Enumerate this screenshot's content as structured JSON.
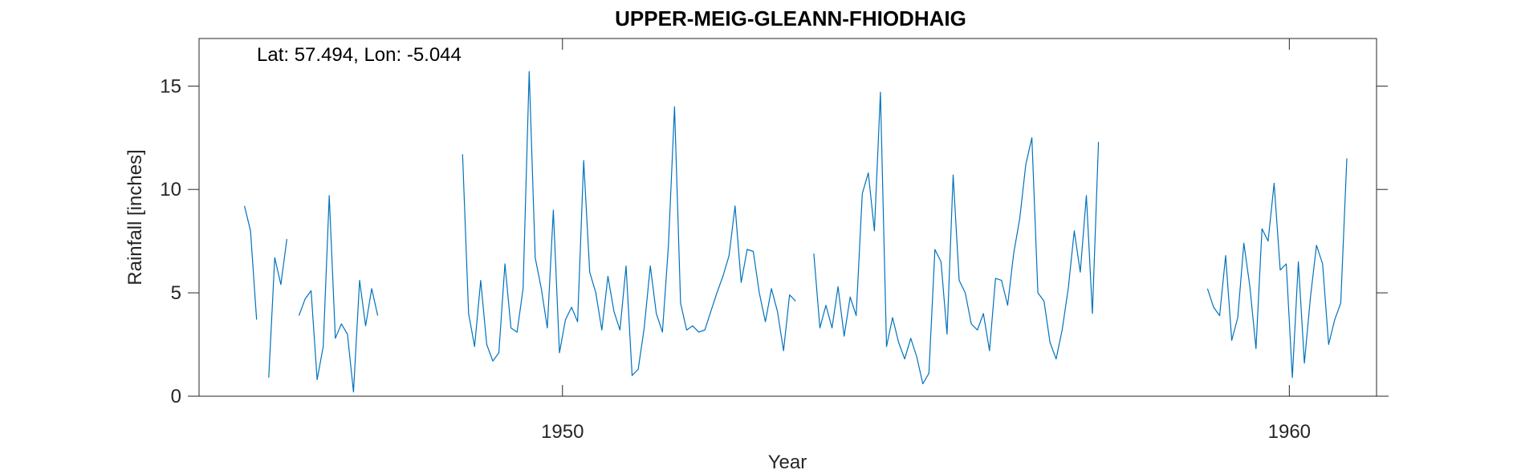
{
  "chart_data": {
    "type": "line",
    "title": "UPPER-MEIG-GLEANN-FHIODHAIG",
    "annotation": "Lat: 57.494, Lon: -5.044",
    "xlabel": "Year",
    "ylabel": "Rainfall [inches]",
    "xlim": [
      1945.0,
      1961.2
    ],
    "ylim": [
      0,
      17.3
    ],
    "x_ticks": [
      1950,
      1960
    ],
    "y_ticks": [
      0,
      5,
      10,
      15
    ],
    "grid": false,
    "color": "#0072BD",
    "series": [
      {
        "x_start": 1945.625,
        "step": 0.08333,
        "values": [
          9.2,
          8.0,
          3.7,
          null,
          0.9,
          6.7,
          5.4,
          7.6,
          null,
          3.9,
          4.7,
          5.1,
          0.8,
          2.4,
          9.7,
          2.8,
          3.5,
          3.0,
          0.2,
          5.6,
          3.4,
          5.2,
          3.9,
          null,
          null,
          null,
          null,
          null,
          null,
          null,
          null,
          null,
          null,
          null,
          null,
          null,
          11.7,
          4.0,
          2.4,
          5.6,
          2.5,
          1.7,
          2.1,
          6.4,
          3.3,
          3.1,
          5.2,
          15.7,
          6.7,
          5.2,
          3.3,
          9.0,
          2.1,
          3.7,
          4.3,
          3.6,
          11.4,
          6.0,
          5.0,
          3.2,
          5.8,
          4.1,
          3.2,
          6.3,
          1.0,
          1.3,
          3.3,
          6.3,
          4.0,
          3.1,
          7.3,
          14.0,
          4.5,
          3.2,
          3.4,
          3.1,
          3.2,
          4.1,
          5.0,
          5.8,
          6.8,
          9.2,
          5.5,
          7.1,
          7.0,
          5.0,
          3.6,
          5.2,
          4.1,
          2.2,
          4.9,
          4.6,
          null,
          null,
          6.9,
          3.3,
          4.4,
          3.3,
          5.3,
          2.9,
          4.8,
          3.9,
          9.8,
          10.8,
          8.0,
          14.7,
          2.4,
          3.8,
          2.6,
          1.8,
          2.8,
          1.9,
          0.6,
          1.1,
          7.1,
          6.5,
          3.0,
          10.7,
          5.6,
          5.0,
          3.5,
          3.2,
          4.0,
          2.2,
          5.7,
          5.6,
          4.4,
          6.9,
          8.6,
          11.2,
          12.5,
          5.0,
          4.6,
          2.6,
          1.8,
          3.2,
          5.2,
          8.0,
          6.0,
          9.7,
          4.0,
          12.3,
          null,
          null,
          null,
          null,
          null,
          null,
          null,
          null,
          null,
          null,
          null,
          null,
          null,
          null,
          null,
          null,
          null,
          5.2,
          4.3,
          3.9,
          6.8,
          2.7,
          3.8,
          7.4,
          5.3,
          2.3,
          8.1,
          7.5,
          10.3,
          6.1,
          6.4,
          0.9,
          6.5,
          1.6,
          4.8,
          7.3,
          6.4,
          2.5,
          3.7,
          4.5,
          11.5
        ]
      }
    ]
  }
}
